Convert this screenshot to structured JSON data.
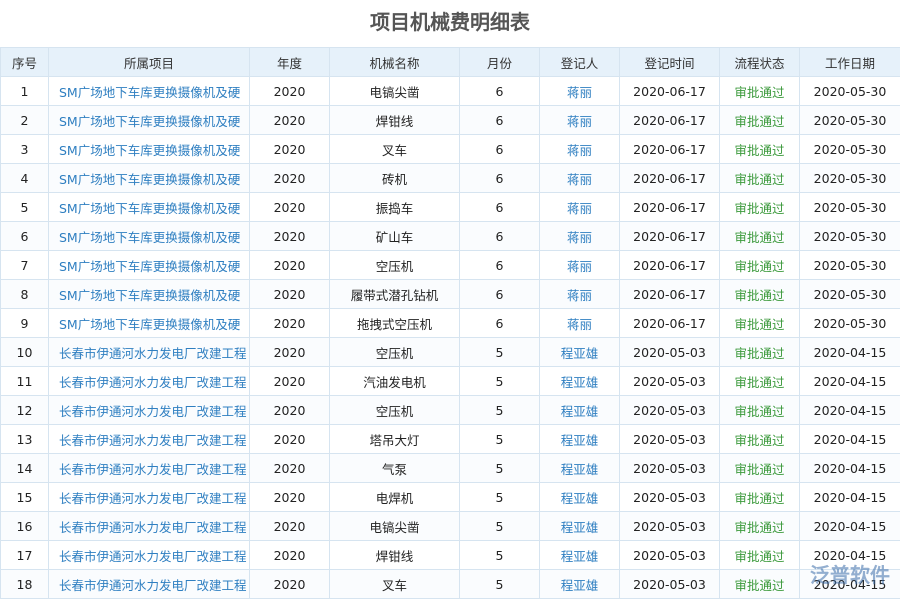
{
  "header": {
    "title": "项目机械费明细表"
  },
  "table": {
    "columns": [
      "序号",
      "所属项目",
      "年度",
      "机械名称",
      "月份",
      "登记人",
      "登记时间",
      "流程状态",
      "工作日期"
    ],
    "rows": [
      [
        "1",
        "SM广场地下车库更换摄像机及硬",
        "2020",
        "电镐尖凿",
        "6",
        "蒋丽",
        "2020-06-17",
        "审批通过",
        "2020-05-30"
      ],
      [
        "2",
        "SM广场地下车库更换摄像机及硬",
        "2020",
        "焊钳线",
        "6",
        "蒋丽",
        "2020-06-17",
        "审批通过",
        "2020-05-30"
      ],
      [
        "3",
        "SM广场地下车库更换摄像机及硬",
        "2020",
        "叉车",
        "6",
        "蒋丽",
        "2020-06-17",
        "审批通过",
        "2020-05-30"
      ],
      [
        "4",
        "SM广场地下车库更换摄像机及硬",
        "2020",
        "砖机",
        "6",
        "蒋丽",
        "2020-06-17",
        "审批通过",
        "2020-05-30"
      ],
      [
        "5",
        "SM广场地下车库更换摄像机及硬",
        "2020",
        "振捣车",
        "6",
        "蒋丽",
        "2020-06-17",
        "审批通过",
        "2020-05-30"
      ],
      [
        "6",
        "SM广场地下车库更换摄像机及硬",
        "2020",
        "矿山车",
        "6",
        "蒋丽",
        "2020-06-17",
        "审批通过",
        "2020-05-30"
      ],
      [
        "7",
        "SM广场地下车库更换摄像机及硬",
        "2020",
        "空压机",
        "6",
        "蒋丽",
        "2020-06-17",
        "审批通过",
        "2020-05-30"
      ],
      [
        "8",
        "SM广场地下车库更换摄像机及硬",
        "2020",
        "履带式潜孔钻机",
        "6",
        "蒋丽",
        "2020-06-17",
        "审批通过",
        "2020-05-30"
      ],
      [
        "9",
        "SM广场地下车库更换摄像机及硬",
        "2020",
        "拖拽式空压机",
        "6",
        "蒋丽",
        "2020-06-17",
        "审批通过",
        "2020-05-30"
      ],
      [
        "10",
        "长春市伊通河水力发电厂改建工程",
        "2020",
        "空压机",
        "5",
        "程亚雄",
        "2020-05-03",
        "审批通过",
        "2020-04-15"
      ],
      [
        "11",
        "长春市伊通河水力发电厂改建工程",
        "2020",
        "汽油发电机",
        "5",
        "程亚雄",
        "2020-05-03",
        "审批通过",
        "2020-04-15"
      ],
      [
        "12",
        "长春市伊通河水力发电厂改建工程",
        "2020",
        "空压机",
        "5",
        "程亚雄",
        "2020-05-03",
        "审批通过",
        "2020-04-15"
      ],
      [
        "13",
        "长春市伊通河水力发电厂改建工程",
        "2020",
        "塔吊大灯",
        "5",
        "程亚雄",
        "2020-05-03",
        "审批通过",
        "2020-04-15"
      ],
      [
        "14",
        "长春市伊通河水力发电厂改建工程",
        "2020",
        "气泵",
        "5",
        "程亚雄",
        "2020-05-03",
        "审批通过",
        "2020-04-15"
      ],
      [
        "15",
        "长春市伊通河水力发电厂改建工程",
        "2020",
        "电焊机",
        "5",
        "程亚雄",
        "2020-05-03",
        "审批通过",
        "2020-04-15"
      ],
      [
        "16",
        "长春市伊通河水力发电厂改建工程",
        "2020",
        "电镐尖凿",
        "5",
        "程亚雄",
        "2020-05-03",
        "审批通过",
        "2020-04-15"
      ],
      [
        "17",
        "长春市伊通河水力发电厂改建工程",
        "2020",
        "焊钳线",
        "5",
        "程亚雄",
        "2020-05-03",
        "审批通过",
        "2020-04-15"
      ],
      [
        "18",
        "长春市伊通河水力发电厂改建工程",
        "2020",
        "叉车",
        "5",
        "程亚雄",
        "2020-05-03",
        "审批通过",
        "2020-04-15"
      ]
    ]
  },
  "watermark": "泛普软件"
}
